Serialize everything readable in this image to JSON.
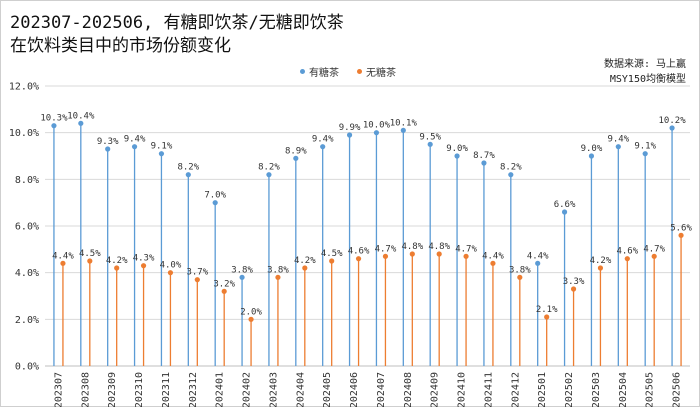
{
  "title_line1": "202307-202506, 有糖即饮茶/无糖即饮茶",
  "title_line2": "在饮料类目中的市场份额变化",
  "source": "数据来源: 马上赢",
  "model": "MSY150均衡模型",
  "chart_data": {
    "type": "line",
    "title": "202307-202506, 有糖即饮茶/无糖即饮茶 在饮料类目中的市场份额变化",
    "categories": [
      "202307",
      "202308",
      "202309",
      "202310",
      "202311",
      "202312",
      "202401",
      "202402",
      "202403",
      "202404",
      "202405",
      "202406",
      "202407",
      "202408",
      "202409",
      "202410",
      "202411",
      "202412",
      "202501",
      "202502",
      "202503",
      "202504",
      "202505",
      "202506"
    ],
    "series": [
      {
        "name": "有糖茶",
        "color": "#5b9bd5",
        "values": [
          10.3,
          10.4,
          9.3,
          9.4,
          9.1,
          8.2,
          7.0,
          3.8,
          8.2,
          8.9,
          9.4,
          9.9,
          10.0,
          10.1,
          9.5,
          9.0,
          8.7,
          8.2,
          4.4,
          6.6,
          9.0,
          9.4,
          9.1,
          10.2
        ],
        "labels": [
          "10.3%",
          "10.4%",
          "9.3%",
          "9.4%",
          "9.1%",
          "8.2%",
          "7.0%",
          "3.8%",
          "8.2%",
          "8.9%",
          "9.4%",
          "9.9%",
          "10.0%",
          "10.1%",
          "9.5%",
          "9.0%",
          "8.7%",
          "8.2%",
          "4.4%",
          "6.6%",
          "9.0%",
          "9.4%",
          "9.1%",
          "10.2%"
        ]
      },
      {
        "name": "无糖茶",
        "color": "#ed7d31",
        "values": [
          4.4,
          4.5,
          4.2,
          4.3,
          4.0,
          3.7,
          3.2,
          2.0,
          3.8,
          4.2,
          4.5,
          4.6,
          4.7,
          4.8,
          4.8,
          4.7,
          4.4,
          3.8,
          2.1,
          3.3,
          4.2,
          4.6,
          4.7,
          5.6
        ],
        "labels": [
          "4.4%",
          "4.5%",
          "4.2%",
          "4.3%",
          "4.0%",
          "3.7%",
          "3.2%",
          "2.0%",
          "3.8%",
          "4.2%",
          "4.5%",
          "4.6%",
          "4.7%",
          "4.8%",
          "4.8%",
          "4.7%",
          "4.4%",
          "3.8%",
          "2.1%",
          "3.3%",
          "4.2%",
          "4.6%",
          "4.7%",
          "5.6%"
        ]
      }
    ],
    "ylim": [
      0,
      12
    ],
    "yticks": [
      0,
      2,
      4,
      6,
      8,
      10,
      12
    ],
    "ytick_labels": [
      "0.0%",
      "2.0%",
      "4.0%",
      "6.0%",
      "8.0%",
      "10.0%",
      "12.0%"
    ],
    "xlabel": "",
    "ylabel": "",
    "grid": true,
    "legend_position": "top-center"
  }
}
